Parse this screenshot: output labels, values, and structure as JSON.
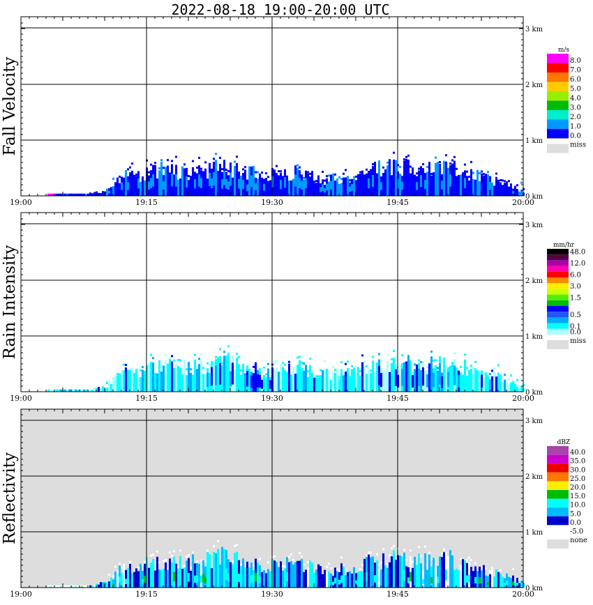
{
  "title": "2022-08-18   19:00-20:00 UTC",
  "chart_data": [
    {
      "type": "heatmap",
      "panel_label": "Fall Velocity",
      "x_ticks": [
        "19:00",
        "19:15",
        "19:30",
        "19:45",
        "20:00"
      ],
      "y_ticks": [
        "0 km",
        "1 km",
        "2 km",
        "3 km"
      ],
      "xlim": [
        "19:00",
        "20:00"
      ],
      "ylim_km": [
        0,
        3.1
      ],
      "grid": true,
      "background": "#ffffff",
      "legend_unit": "m/s",
      "legend": [
        {
          "label": "8.0",
          "color": "#ff00ff"
        },
        {
          "label": "7.0",
          "color": "#ff0000"
        },
        {
          "label": "6.0",
          "color": "#ff7700"
        },
        {
          "label": "5.0",
          "color": "#ffcc00"
        },
        {
          "label": "4.0",
          "color": "#99ee00"
        },
        {
          "label": "3.0",
          "color": "#00bb00"
        },
        {
          "label": "2.0",
          "color": "#00eecc"
        },
        {
          "label": "1.0",
          "color": "#0099ff"
        },
        {
          "label": "0.0",
          "color": "#0000ff"
        }
      ],
      "miss_label": "miss",
      "miss_color": "#dddddd",
      "echo_top_profile_km": [
        [
          "19:03",
          0.05
        ],
        [
          "19:08",
          0.05
        ],
        [
          "19:10",
          0.1
        ],
        [
          "19:12",
          0.4
        ],
        [
          "19:14",
          0.45
        ],
        [
          "19:17",
          0.55
        ],
        [
          "19:19",
          0.5
        ],
        [
          "19:22",
          0.55
        ],
        [
          "19:24",
          0.65
        ],
        [
          "19:27",
          0.5
        ],
        [
          "19:30",
          0.45
        ],
        [
          "19:33",
          0.5
        ],
        [
          "19:36",
          0.35
        ],
        [
          "19:39",
          0.4
        ],
        [
          "19:42",
          0.55
        ],
        [
          "19:45",
          0.6
        ],
        [
          "19:48",
          0.55
        ],
        [
          "19:51",
          0.6
        ],
        [
          "19:54",
          0.45
        ],
        [
          "19:57",
          0.3
        ],
        [
          "20:00",
          0.1
        ]
      ],
      "value_fraction_nonzero": 0.4
    },
    {
      "type": "heatmap",
      "panel_label": "Rain Intensity",
      "x_ticks": [
        "19:00",
        "19:15",
        "19:30",
        "19:45",
        "20:00"
      ],
      "y_ticks": [
        "0 km",
        "1 km",
        "2 km",
        "3 km"
      ],
      "xlim": [
        "19:00",
        "20:00"
      ],
      "ylim_km": [
        0,
        3.1
      ],
      "grid": true,
      "background": "#ffffff",
      "legend_unit": "mm/hr",
      "legend": [
        {
          "label": "48.0",
          "color": "#000000"
        },
        {
          "label": "",
          "color": "#550044"
        },
        {
          "label": "12.0",
          "color": "#aa00aa"
        },
        {
          "label": "",
          "color": "#ff00aa"
        },
        {
          "label": "6.0",
          "color": "#ff0000"
        },
        {
          "label": "",
          "color": "#ff8800"
        },
        {
          "label": "3.0",
          "color": "#ffee00"
        },
        {
          "label": "",
          "color": "#ccff00"
        },
        {
          "label": "1.5",
          "color": "#55ee00"
        },
        {
          "label": "",
          "color": "#00bb00"
        },
        {
          "label": "",
          "color": "#0000ff"
        },
        {
          "label": "0.5",
          "color": "#2255ff"
        },
        {
          "label": "",
          "color": "#00aaff"
        },
        {
          "label": "0.1",
          "color": "#00ffff"
        },
        {
          "label": "0.0",
          "color": "#aaffff"
        }
      ],
      "miss_label": "miss",
      "miss_color": "#dddddd",
      "echo_top_profile_km": [
        [
          "19:03",
          0.05
        ],
        [
          "19:08",
          0.05
        ],
        [
          "19:10",
          0.1
        ],
        [
          "19:12",
          0.4
        ],
        [
          "19:14",
          0.45
        ],
        [
          "19:17",
          0.55
        ],
        [
          "19:19",
          0.5
        ],
        [
          "19:22",
          0.55
        ],
        [
          "19:24",
          0.65
        ],
        [
          "19:27",
          0.5
        ],
        [
          "19:30",
          0.45
        ],
        [
          "19:33",
          0.5
        ],
        [
          "19:36",
          0.35
        ],
        [
          "19:39",
          0.4
        ],
        [
          "19:42",
          0.55
        ],
        [
          "19:45",
          0.6
        ],
        [
          "19:48",
          0.55
        ],
        [
          "19:51",
          0.6
        ],
        [
          "19:54",
          0.45
        ],
        [
          "19:57",
          0.3
        ],
        [
          "20:00",
          0.1
        ]
      ]
    },
    {
      "type": "heatmap",
      "panel_label": "Reflectivity",
      "x_ticks": [
        "19:00",
        "19:15",
        "19:30",
        "19:45",
        "20:00"
      ],
      "y_ticks": [
        "0 km",
        "1 km",
        "2 km",
        "3 km"
      ],
      "xlim": [
        "19:00",
        "20:00"
      ],
      "ylim_km": [
        0,
        3.1
      ],
      "grid": true,
      "background": "#dddddd",
      "legend_unit": "dBZ",
      "legend": [
        {
          "label": "40.0",
          "color": "#aa44aa"
        },
        {
          "label": "35.0",
          "color": "#cc00cc"
        },
        {
          "label": "30.0",
          "color": "#ee0000"
        },
        {
          "label": "25.0",
          "color": "#ff7700"
        },
        {
          "label": "20.0",
          "color": "#ffee00"
        },
        {
          "label": "15.0",
          "color": "#00bb00"
        },
        {
          "label": "10.0",
          "color": "#00ffff"
        },
        {
          "label": "5.0",
          "color": "#00bbff"
        },
        {
          "label": "0.0",
          "color": "#0000cc"
        },
        {
          "label": "-5.0",
          "color": "#ffffff"
        }
      ],
      "miss_label": "none",
      "miss_color": "#dddddd",
      "echo_top_profile_km": [
        [
          "19:03",
          0.05
        ],
        [
          "19:08",
          0.05
        ],
        [
          "19:10",
          0.1
        ],
        [
          "19:12",
          0.4
        ],
        [
          "19:14",
          0.45
        ],
        [
          "19:17",
          0.55
        ],
        [
          "19:19",
          0.5
        ],
        [
          "19:22",
          0.55
        ],
        [
          "19:24",
          0.65
        ],
        [
          "19:27",
          0.5
        ],
        [
          "19:30",
          0.45
        ],
        [
          "19:33",
          0.5
        ],
        [
          "19:36",
          0.35
        ],
        [
          "19:39",
          0.4
        ],
        [
          "19:42",
          0.55
        ],
        [
          "19:45",
          0.6
        ],
        [
          "19:48",
          0.55
        ],
        [
          "19:51",
          0.6
        ],
        [
          "19:54",
          0.45
        ],
        [
          "19:57",
          0.3
        ],
        [
          "20:00",
          0.1
        ]
      ]
    }
  ]
}
